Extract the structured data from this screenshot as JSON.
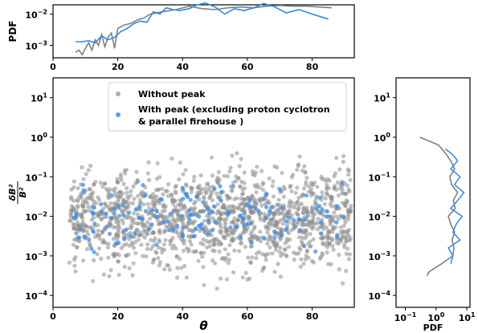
{
  "chart_data": [
    {
      "panel": "top",
      "type": "line",
      "ylabel": "PDF",
      "yscale": "log",
      "xlim": [
        0,
        93
      ],
      "ylim_exp": [
        -3.4,
        -1.7
      ],
      "xticks": [
        0,
        20,
        40,
        60,
        80
      ],
      "xtick_labels": [
        "0",
        "20",
        "40",
        "60",
        "80"
      ],
      "yticks_exp": [
        -3,
        -2
      ],
      "ytick_labels": [
        [
          "10",
          "−3"
        ],
        [
          "10",
          "−2"
        ]
      ],
      "series": [
        {
          "color": "#7f7f7f",
          "x": [
            7,
            8,
            9,
            10,
            11,
            12,
            13,
            14,
            15,
            16,
            17,
            18,
            19,
            20,
            22,
            24,
            26,
            28,
            30,
            34,
            38,
            42,
            46,
            50,
            54,
            58,
            62,
            66,
            70,
            74,
            78,
            82,
            86
          ],
          "y": [
            0.0006,
            0.0007,
            0.0005,
            0.0008,
            0.0012,
            0.0007,
            0.0015,
            0.001,
            0.0022,
            0.0009,
            0.0018,
            0.0025,
            0.0008,
            0.0035,
            0.0045,
            0.005,
            0.0065,
            0.0075,
            0.01,
            0.012,
            0.014,
            0.018,
            0.015,
            0.014,
            0.016,
            0.017,
            0.016,
            0.018,
            0.019,
            0.018,
            0.018,
            0.017,
            0.016
          ]
        },
        {
          "color": "#2e8be0",
          "x": [
            7,
            9,
            11,
            13,
            15,
            17,
            19,
            21,
            23,
            25,
            27,
            29,
            31,
            33,
            35,
            37,
            39,
            42,
            44,
            47,
            50,
            53,
            56,
            59,
            62,
            65,
            68,
            72,
            76,
            80,
            85
          ],
          "y": [
            0.0013,
            0.0013,
            0.0014,
            0.0012,
            0.002,
            0.0015,
            0.0018,
            0.0028,
            0.0035,
            0.005,
            0.006,
            0.0055,
            0.012,
            0.01,
            0.016,
            0.014,
            0.013,
            0.015,
            0.019,
            0.023,
            0.017,
            0.01,
            0.015,
            0.013,
            0.016,
            0.022,
            0.018,
            0.011,
            0.014,
            0.01,
            0.007
          ]
        }
      ]
    },
    {
      "panel": "main",
      "type": "scatter",
      "xlabel": "θ",
      "ylabel_num": "δB²",
      "ylabel_den": "B²",
      "yscale": "log",
      "xlim": [
        0,
        93
      ],
      "ylim_exp": [
        -4.3,
        1.5
      ],
      "xticks": [
        0,
        20,
        40,
        60,
        80
      ],
      "xtick_labels": [
        "0",
        "20",
        "40",
        "60",
        "80"
      ],
      "yticks_exp": [
        -4,
        -3,
        -2,
        -1,
        0,
        1
      ],
      "ytick_labels": [
        [
          "10",
          "−4"
        ],
        [
          "10",
          "−3"
        ],
        [
          "10",
          "−2"
        ],
        [
          "10",
          "−1"
        ],
        [
          "10",
          "0"
        ],
        [
          "10",
          "1"
        ]
      ],
      "legend": {
        "position": "upper center",
        "entries": [
          {
            "label": "Without peak",
            "color": "#8c8c8c"
          },
          {
            "label": "With peak (excluding proton cyclotron",
            "label_line2": " & parallel firehouse )",
            "color": "#3d8ee8"
          }
        ]
      },
      "series": [
        {
          "name": "Without peak",
          "color": "#8c8c8c",
          "count": 1500,
          "x_range": [
            5,
            92
          ],
          "log_y_range": [
            -3.9,
            -0.2
          ],
          "seed": 7
        },
        {
          "name": "With peak (excluding proton cyclotron & parallel firehouse )",
          "color": "#3d8ee8",
          "count": 150,
          "x_range": [
            6,
            90
          ],
          "log_y_range": [
            -3.2,
            -0.8
          ],
          "seed": 23
        }
      ]
    },
    {
      "panel": "right",
      "type": "line",
      "xlabel": "PDF",
      "xscale": "log",
      "yscale": "log",
      "xlim_exp": [
        -1.3,
        1.1
      ],
      "ylim_exp": [
        -4.3,
        1.5
      ],
      "xticks_exp": [
        -1,
        0,
        1
      ],
      "xtick_labels": [
        [
          "10",
          "−1"
        ],
        [
          "10",
          "0"
        ],
        [
          "10",
          "1"
        ]
      ],
      "yticks_exp": [
        -4,
        -3,
        -2,
        -1,
        0,
        1
      ],
      "ytick_labels": [
        [
          "10",
          "−4"
        ],
        [
          "10",
          "−3"
        ],
        [
          "10",
          "−2"
        ],
        [
          "10",
          "−1"
        ],
        [
          "10",
          "0"
        ],
        [
          "10",
          "1"
        ]
      ],
      "series": [
        {
          "color": "#7f7f7f",
          "pdf": [
            0.5,
            0.6,
            1.5,
            3.5,
            3.8,
            3.3,
            4.0,
            3.0,
            2.5,
            4.2,
            3.6,
            5.0,
            3.2,
            2.8,
            4.0,
            3.0,
            2.0,
            1.2,
            0.3
          ],
          "log_y": [
            -3.5,
            -3.4,
            -3.2,
            -3.0,
            -2.8,
            -2.6,
            -2.4,
            -2.2,
            -2.0,
            -1.8,
            -1.6,
            -1.4,
            -1.2,
            -1.0,
            -0.8,
            -0.6,
            -0.4,
            -0.2,
            0.0
          ]
        },
        {
          "color": "#3d8ee8",
          "pdf": [
            3.0,
            3.5,
            2.5,
            6.0,
            3.5,
            4.5,
            7.0,
            3.0,
            5.0,
            8.0,
            4.0,
            6.0,
            3.0,
            5.0,
            4.0,
            3.0,
            2.0
          ],
          "log_y": [
            -3.2,
            -3.0,
            -2.8,
            -2.6,
            -2.4,
            -2.2,
            -2.0,
            -1.8,
            -1.6,
            -1.4,
            -1.2,
            -1.0,
            -0.8,
            -0.6,
            -0.5,
            -0.4,
            -0.3
          ]
        }
      ]
    }
  ]
}
